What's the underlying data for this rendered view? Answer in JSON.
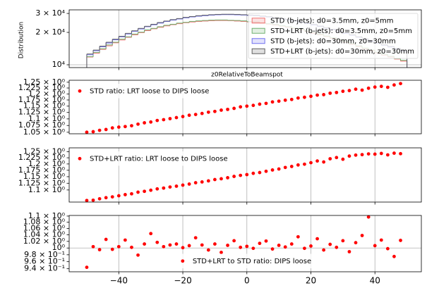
{
  "chart_data": [
    {
      "type": "histogram",
      "x_label": "z0RelativeToBeamspot",
      "y_label": "Distribution",
      "bins": [
        -50,
        -48,
        -46,
        -44,
        -42,
        -40,
        -38,
        -36,
        -34,
        -32,
        -30,
        -28,
        -26,
        -24,
        -22,
        -20,
        -18,
        -16,
        -14,
        -12,
        -10,
        -8,
        -6,
        -4,
        -2,
        0,
        2,
        4,
        6,
        8,
        10,
        12,
        14,
        16,
        18,
        20,
        22,
        24,
        26,
        28,
        30,
        32,
        34,
        36,
        38,
        40,
        42,
        44,
        46,
        48,
        50
      ],
      "series": [
        {
          "name": "STD (b-jets): d0=3.5mm, z0=5mm",
          "color": "#f07070",
          "values": [
            11800,
            12800,
            13900,
            15000,
            16000,
            17000,
            18000,
            19000,
            19900,
            20800,
            21600,
            22300,
            23000,
            23600,
            24100,
            24600,
            25000,
            25300,
            25500,
            25700,
            25800,
            25800,
            25700,
            25500,
            25300,
            25000,
            24700,
            24300,
            23900,
            23400,
            22900,
            22300,
            21700,
            21100,
            20400,
            19700,
            19000,
            18300,
            17600,
            16900,
            16200,
            15500,
            14800,
            14100,
            13500,
            12900,
            12300,
            11800,
            11300,
            10800
          ]
        },
        {
          "name": "STD+LRT (b-jets): d0=3.5mm, z0=5mm",
          "color": "#70b070",
          "values": [
            11900,
            13000,
            14100,
            15300,
            16200,
            17300,
            18200,
            19300,
            20100,
            21100,
            21800,
            22600,
            23300,
            23800,
            24400,
            24800,
            25300,
            25600,
            25800,
            26000,
            26100,
            26100,
            25900,
            25800,
            25600,
            25200,
            25000,
            24600,
            24100,
            23700,
            23100,
            22600,
            21900,
            21400,
            20600,
            20000,
            19200,
            18500,
            17800,
            17100,
            16400,
            15700,
            15000,
            14300,
            13700,
            13100,
            12500,
            12000,
            11400,
            11000
          ]
        },
        {
          "name": "STD (b-jets): d0=30mm, z0=30mm",
          "color": "#7070f0",
          "values": [
            12390,
            13490,
            14710,
            15930,
            17060,
            18190,
            19330,
            20480,
            21530,
            22590,
            23540,
            24400,
            25250,
            26010,
            26650,
            27310,
            27850,
            28290,
            28610,
            28940,
            29150,
            29260,
            29250,
            29120,
            28990,
            28750,
            28500,
            28140,
            27770,
            27280,
            26790,
            26180,
            25560,
            24940,
            24190,
            23440,
            22690,
            21920,
            21160,
            20380,
            19600,
            18820,
            18030,
            17230,
            16550,
            15870,
            15180,
            14610,
            14030,
            13460
          ]
        },
        {
          "name": "STD+LRT (b-jets): d0=30mm, z0=30mm",
          "color": "#606060",
          "values": [
            12600,
            13700,
            14900,
            16200,
            17300,
            18400,
            19600,
            20700,
            21800,
            22800,
            23800,
            24700,
            25500,
            26300,
            26900,
            27600,
            28100,
            28600,
            28900,
            29200,
            29400,
            29500,
            29500,
            29400,
            29200,
            29000,
            28800,
            28400,
            28000,
            27500,
            27000,
            26400,
            25800,
            25200,
            24400,
            23700,
            22900,
            22100,
            21400,
            20600,
            19800,
            19000,
            18200,
            17400,
            16700,
            16000,
            15300,
            14800,
            14200,
            13600
          ]
        }
      ],
      "xlim": [
        -55.5,
        54.5
      ],
      "ylim": [
        9415,
        32400
      ],
      "log_y": true,
      "grid": true,
      "legend": "upper right",
      "yticks": [
        {
          "value": 10000,
          "label": "10⁴"
        },
        {
          "value": 20000,
          "label": "2 × 10⁴"
        },
        {
          "value": 30000,
          "label": "3 × 10⁴"
        }
      ]
    },
    {
      "type": "scatter",
      "x": [
        -50,
        -48,
        -46,
        -44,
        -42,
        -40,
        -38,
        -36,
        -34,
        -32,
        -30,
        -28,
        -26,
        -24,
        -22,
        -20,
        -18,
        -16,
        -14,
        -12,
        -10,
        -8,
        -6,
        -4,
        -2,
        0,
        2,
        4,
        6,
        8,
        10,
        12,
        14,
        16,
        18,
        20,
        22,
        24,
        26,
        28,
        30,
        32,
        34,
        36,
        38,
        40,
        42,
        44,
        46,
        48
      ],
      "series": [
        {
          "name": "STD ratio: LRT loose to DIPS loose",
          "color": "#ff0000",
          "values": [
            1.05,
            1.052,
            1.057,
            1.06,
            1.066,
            1.069,
            1.071,
            1.074,
            1.08,
            1.085,
            1.088,
            1.094,
            1.097,
            1.101,
            1.105,
            1.109,
            1.114,
            1.117,
            1.121,
            1.126,
            1.129,
            1.134,
            1.137,
            1.141,
            1.147,
            1.15,
            1.153,
            1.158,
            1.161,
            1.167,
            1.17,
            1.174,
            1.177,
            1.183,
            1.186,
            1.19,
            1.195,
            1.197,
            1.203,
            1.206,
            1.211,
            1.214,
            1.22,
            1.216,
            1.224,
            1.229,
            1.232,
            1.228,
            1.238,
            1.244
          ]
        }
      ],
      "xlim": [
        -55.5,
        54.5
      ],
      "ylim": [
        1.0444,
        1.2585
      ],
      "log_y": true,
      "grid": true,
      "legend": "upper left",
      "yticks": [
        {
          "value": 1.05,
          "label": "1.05 × 10⁰"
        },
        {
          "value": 1.075,
          "label": "1.075 × 10⁰"
        },
        {
          "value": 1.1,
          "label": "1.1 × 10⁰"
        },
        {
          "value": 1.125,
          "label": "1.125 × 10⁰"
        },
        {
          "value": 1.15,
          "label": "1.15 × 10⁰"
        },
        {
          "value": 1.175,
          "label": "1.175 × 10⁰"
        },
        {
          "value": 1.2,
          "label": "1.2 × 10⁰"
        },
        {
          "value": 1.225,
          "label": "1.225 × 10⁰"
        },
        {
          "value": 1.25,
          "label": "1.25 × 10⁰"
        }
      ]
    },
    {
      "type": "scatter",
      "x": [
        -50,
        -48,
        -46,
        -44,
        -42,
        -40,
        -38,
        -36,
        -34,
        -32,
        -30,
        -28,
        -26,
        -24,
        -22,
        -20,
        -18,
        -16,
        -14,
        -12,
        -10,
        -8,
        -6,
        -4,
        -2,
        0,
        2,
        4,
        6,
        8,
        10,
        12,
        14,
        16,
        18,
        20,
        22,
        24,
        26,
        28,
        30,
        32,
        34,
        36,
        38,
        40,
        42,
        44,
        46,
        48
      ],
      "series": [
        {
          "name": "STD+LRT ratio: LRT loose to DIPS loose",
          "color": "#ff0000",
          "values": [
            1.062,
            1.063,
            1.068,
            1.072,
            1.075,
            1.079,
            1.083,
            1.086,
            1.092,
            1.095,
            1.099,
            1.104,
            1.107,
            1.111,
            1.114,
            1.118,
            1.122,
            1.127,
            1.13,
            1.134,
            1.139,
            1.142,
            1.146,
            1.151,
            1.155,
            1.158,
            1.163,
            1.166,
            1.171,
            1.176,
            1.18,
            1.186,
            1.19,
            1.196,
            1.199,
            1.205,
            1.212,
            1.208,
            1.221,
            1.226,
            1.219,
            1.232,
            1.236,
            1.238,
            1.241,
            1.24,
            1.243,
            1.237,
            1.244,
            1.242
          ]
        }
      ],
      "xlim": [
        -55.5,
        54.5
      ],
      "ylim": [
        1.0564,
        1.2664
      ],
      "log_y": true,
      "grid": true,
      "legend": "upper left",
      "yticks": [
        {
          "value": 1.1,
          "label": "1.1 × 10⁰"
        },
        {
          "value": 1.125,
          "label": "1.125 × 10⁰"
        },
        {
          "value": 1.15,
          "label": "1.15 × 10⁰"
        },
        {
          "value": 1.175,
          "label": "1.175 × 10⁰"
        },
        {
          "value": 1.2,
          "label": "1.2 × 10⁰"
        },
        {
          "value": 1.225,
          "label": "1.225 × 10⁰"
        },
        {
          "value": 1.25,
          "label": "1.25 × 10⁰"
        }
      ]
    },
    {
      "type": "scatter",
      "x": [
        -50,
        -48,
        -46,
        -44,
        -42,
        -40,
        -38,
        -36,
        -34,
        -32,
        -30,
        -28,
        -26,
        -24,
        -22,
        -20,
        -18,
        -16,
        -14,
        -12,
        -10,
        -8,
        -6,
        -4,
        -2,
        0,
        2,
        4,
        6,
        8,
        10,
        12,
        14,
        16,
        18,
        20,
        22,
        24,
        26,
        28,
        30,
        32,
        34,
        36,
        38,
        40,
        42,
        44,
        46,
        48
      ],
      "series": [
        {
          "name": "STD+LRT to STD ratio: DIPS loose",
          "color": "#ff0000",
          "values": [
            0.944,
            1.004,
            0.995,
            1.026,
            0.996,
            1.004,
            1.024,
            1.002,
            0.979,
            1.012,
            1.044,
            1.017,
            1.004,
            1.009,
            1.012,
            1.001,
            1.007,
            1.031,
            1.009,
            0.994,
            1.012,
            0.987,
            1.008,
            1.022,
            1.002,
            1.005,
            0.999,
            1.014,
            1.021,
            0.997,
            1.008,
            1.003,
            1.012,
            1.034,
            0.999,
            1.006,
            1.028,
            0.994,
            1.011,
            1.002,
            1.022,
            0.989,
            1.016,
            1.038,
            1.097,
            1.007,
            1.024,
            0.998,
            0.975,
            1.023
          ]
        }
      ],
      "xlim": [
        -55.5,
        54.5
      ],
      "ylim": [
        0.9315,
        1.1021
      ],
      "log_y": true,
      "grid": true,
      "legend": "lower center",
      "xticks": [
        {
          "value": -40,
          "label": "−40"
        },
        {
          "value": -20,
          "label": "−20"
        },
        0,
        20,
        40
      ],
      "yticks": [
        {
          "value": 0.94,
          "label": "9.4 × 10⁻¹"
        },
        {
          "value": 0.96,
          "label": "9.6 × 10⁻¹"
        },
        {
          "value": 0.98,
          "label": "9.8 × 10⁻¹"
        },
        {
          "value": 1.0,
          "label": "10⁰"
        },
        {
          "value": 1.02,
          "label": "1.02 × 10⁰"
        },
        {
          "value": 1.04,
          "label": "1.04 × 10⁰"
        },
        {
          "value": 1.06,
          "label": "1.06 × 10⁰"
        },
        {
          "value": 1.08,
          "label": "1.08 × 10⁰"
        },
        {
          "value": 1.1,
          "label": "1.1 × 10⁰"
        }
      ]
    }
  ]
}
